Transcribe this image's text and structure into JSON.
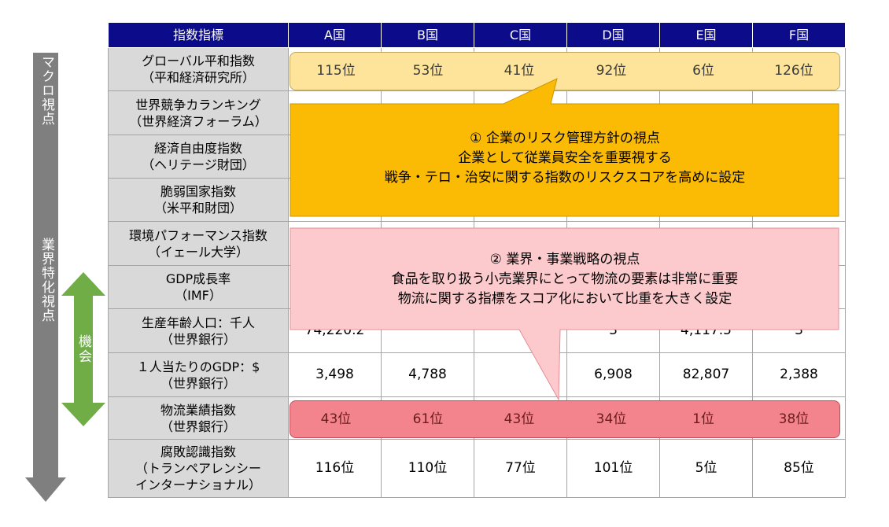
{
  "header": [
    "指数指標",
    "A国",
    "B国",
    "C国",
    "D国",
    "E国",
    "F国"
  ],
  "rows": [
    {
      "name1": "グローバル平和指数",
      "name2": "（平和経済研究所）",
      "cells": [
        "",
        "",
        "",
        "",
        "",
        ""
      ]
    },
    {
      "name1": "世界競争カランキング",
      "name2": "（世界経済フォーラム）",
      "cells": [
        "",
        "",
        "",
        "",
        "",
        ""
      ]
    },
    {
      "name1": "経済自由度指数",
      "name2": "（ヘリテージ財団）",
      "cells": [
        "",
        "",
        "",
        "",
        "",
        ""
      ]
    },
    {
      "name1": "脆弱国家指数",
      "name2": "（米平和財団）",
      "cells": [
        "",
        "",
        "",
        "",
        "",
        ""
      ]
    },
    {
      "name1": "環境パフォーマンス指数",
      "name2": "（イェール大学）",
      "cells": [
        "",
        "",
        "",
        "",
        "",
        ""
      ]
    },
    {
      "name1": "GDP成長率",
      "name2": "（IMF）",
      "cells": [
        "",
        "",
        "",
        "",
        "",
        ""
      ]
    },
    {
      "name1": "生産年齢人口：千人",
      "name2": "（世界銀行）",
      "cells": [
        "74,220.2",
        "",
        "",
        "3",
        "4,117.5",
        "3"
      ]
    },
    {
      "name1": "１人当たりのGDP：$",
      "name2": "（世界銀行）",
      "cells": [
        "3,498",
        "4,788",
        "",
        "6,908",
        "82,807",
        "2,388"
      ]
    },
    {
      "name1": "物流業績指数",
      "name2": "（世界銀行）",
      "cells": [
        "",
        "",
        "",
        "",
        "",
        ""
      ]
    },
    {
      "name1": "腐敗認識指数",
      "name2": "（トランペアレンシー",
      "name3": "インターナショナル）",
      "cells": [
        "116位",
        "110位",
        "77位",
        "101位",
        "5位",
        "85位"
      ]
    }
  ],
  "peace_ranks": [
    "115位",
    "53位",
    "41位",
    "92位",
    "6位",
    "126位"
  ],
  "logistics_ranks": [
    "43位",
    "61位",
    "43位",
    "34位",
    "1位",
    "38位"
  ],
  "side": {
    "macro": "マクロ視点",
    "industry": "業界特化視点",
    "opportunity": "機会"
  },
  "callout1": {
    "title": "① 企業のリスク管理方針の視点",
    "line2": "企業として従業員安全を重要視する",
    "line3": "戦争・テロ・治安に関する指数のリスクスコアを高めに設定"
  },
  "callout2": {
    "title": "② 業界・事業戦略の視点",
    "line2": "食品を取り扱う小売業界にとって物流の要素は非常に重要",
    "line3": "物流に関する指標をスコア化において比重を大きく設定"
  },
  "colors": {
    "header_bg": "#0c0c8a",
    "callout1": "#fbbb05",
    "callout2": "#fccacd",
    "arrow_gray": "#7f7f7f",
    "arrow_green": "#70ad47",
    "peace_bar": "#fde49a",
    "logistics_bar": "#f3848d"
  }
}
